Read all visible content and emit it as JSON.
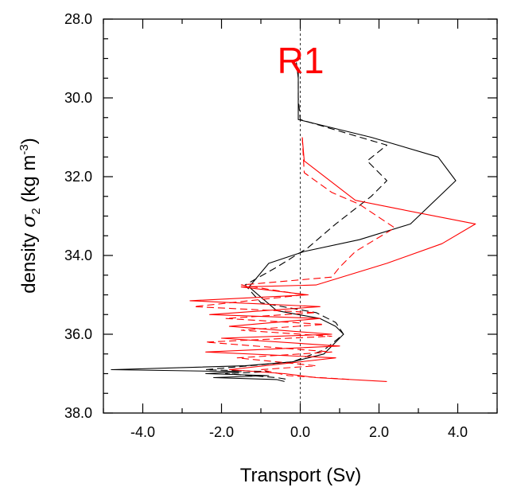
{
  "chart_data": {
    "type": "line",
    "panel_label": "R1",
    "xlabel": "Transport (Sv)",
    "ylabel": {
      "prefix": "density ",
      "symbol": "σ",
      "subscript": "2",
      "unit_open": " (kg m",
      "unit_exp": "-3",
      "unit_close": ")"
    },
    "xlim": [
      -5.0,
      5.0
    ],
    "ylim": [
      38.0,
      28.0
    ],
    "y_inverted": true,
    "x_ticks": [
      -4,
      -2,
      0,
      2,
      4
    ],
    "x_tick_labels": [
      "-4.0",
      "-2.0",
      "0.0",
      "2.0",
      "4.0"
    ],
    "y_ticks": [
      28,
      30,
      32,
      34,
      36,
      38
    ],
    "y_tick_labels": [
      "28.0",
      "30.0",
      "32.0",
      "34.0",
      "36.0",
      "38.0"
    ],
    "grid": false,
    "reference_line": {
      "x": 0.0,
      "style": "dashed"
    },
    "colors": {
      "black": "#000000",
      "red": "#ff0000"
    },
    "series": [
      {
        "color": "#000000",
        "style": "solid",
        "x": [
          -0.1,
          -0.05,
          -0.05,
          1.8,
          3.5,
          3.95,
          2.8,
          1.5,
          0.1,
          -0.8,
          -1.3,
          -0.6,
          0.5,
          0.9,
          1.1,
          0.6,
          -0.2,
          -1.4,
          -4.8,
          -1.5,
          -2.4,
          -0.8,
          -2.2,
          -0.6,
          -0.4
        ],
        "y": [
          29.1,
          29.5,
          30.55,
          31.0,
          31.5,
          32.1,
          33.2,
          33.6,
          33.9,
          34.2,
          34.8,
          35.4,
          35.6,
          35.8,
          36.0,
          36.5,
          36.7,
          36.8,
          36.9,
          36.95,
          37.0,
          37.05,
          37.1,
          37.15,
          37.2
        ]
      },
      {
        "color": "#000000",
        "style": "dashed",
        "x": [
          -0.05,
          -0.05,
          0.0,
          2.2,
          1.7,
          2.2,
          1.8,
          0.9,
          0.2,
          -0.6,
          -1.4,
          -1.0,
          0.4,
          0.9,
          1.1,
          0.6,
          -0.2,
          -1.3,
          -2.4,
          -0.8,
          -1.9,
          -0.6,
          -0.3
        ],
        "y": [
          29.3,
          30.0,
          30.55,
          31.2,
          31.6,
          32.1,
          32.5,
          33.2,
          33.8,
          34.3,
          34.75,
          35.2,
          35.45,
          35.7,
          36.0,
          36.4,
          36.7,
          36.8,
          36.9,
          36.95,
          37.0,
          37.1,
          37.15
        ]
      },
      {
        "color": "#ff0000",
        "style": "solid",
        "x": [
          0.05,
          0.1,
          1.4,
          2.4,
          4.45,
          3.6,
          2.2,
          0.4,
          -1.5,
          0.2,
          -2.8,
          0.5,
          -2.3,
          0.5,
          -1.8,
          0.8,
          -2.0,
          1.0,
          -2.4,
          0.9,
          -1.8,
          -0.4,
          0.4,
          2.2
        ],
        "y": [
          31.0,
          31.6,
          32.6,
          32.8,
          33.2,
          33.7,
          34.2,
          34.75,
          34.8,
          35.0,
          35.15,
          35.3,
          35.5,
          35.6,
          35.8,
          36.0,
          36.1,
          36.3,
          36.45,
          36.6,
          36.9,
          37.0,
          37.1,
          37.2
        ]
      },
      {
        "color": "#ff0000",
        "style": "dashed",
        "x": [
          0.05,
          0.1,
          0.8,
          1.5,
          2.4,
          1.4,
          1.0,
          0.8,
          -1.5,
          0.1,
          -2.7,
          0.4,
          -1.9,
          0.6,
          -1.5,
          0.8,
          -2.4,
          0.8,
          -1.6,
          0.4,
          -1.0,
          -0.3,
          1.3
        ],
        "y": [
          31.0,
          31.9,
          32.4,
          32.7,
          33.3,
          33.9,
          34.3,
          34.55,
          34.75,
          35.0,
          35.3,
          35.45,
          35.6,
          35.75,
          35.9,
          36.05,
          36.2,
          36.45,
          36.6,
          36.8,
          36.9,
          37.05,
          37.15
        ]
      }
    ]
  }
}
